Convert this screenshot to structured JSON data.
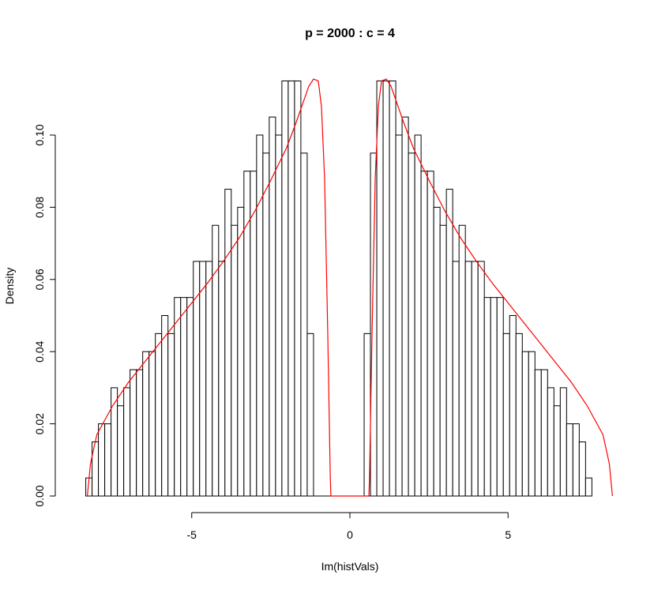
{
  "chart_data": {
    "type": "bar",
    "title": "p = 2000 : c = 4",
    "xlabel": "Im(histVals)",
    "ylabel": "Density",
    "xlim": [
      -8.4,
      8.4
    ],
    "ylim": [
      0,
      0.1175
    ],
    "x_ticks": [
      -5,
      0,
      5
    ],
    "x_tick_labels": [
      "-5",
      "0",
      "5"
    ],
    "y_ticks": [
      0,
      0.02,
      0.04,
      0.06,
      0.08,
      0.1
    ],
    "y_tick_labels": [
      "0.00",
      "0.02",
      "0.04",
      "0.06",
      "0.08",
      "0.10"
    ],
    "grid": false,
    "bin_start": -8.35,
    "bin_width": 0.2,
    "histogram_density": [
      0.005,
      0.015,
      0.02,
      0.02,
      0.03,
      0.025,
      0.03,
      0.035,
      0.035,
      0.04,
      0.04,
      0.045,
      0.05,
      0.045,
      0.055,
      0.055,
      0.055,
      0.065,
      0.065,
      0.065,
      0.075,
      0.065,
      0.085,
      0.075,
      0.08,
      0.09,
      0.09,
      0.1,
      0.095,
      0.105,
      0.1,
      0.115,
      0.115,
      0.115,
      0.095,
      0.045,
      0,
      0,
      0,
      0,
      0,
      0,
      0,
      0,
      0.045,
      0.095,
      0.115,
      0.115,
      0.115,
      0.1,
      0.105,
      0.095,
      0.1,
      0.09,
      0.09,
      0.08,
      0.075,
      0.085,
      0.065,
      0.075,
      0.065,
      0.065,
      0.065,
      0.055,
      0.055,
      0.055,
      0.045,
      0.05,
      0.045,
      0.04,
      0.04,
      0.035,
      0.035,
      0.03,
      0.025,
      0.03,
      0.02,
      0.02,
      0.015,
      0.005
    ],
    "density_curve": {
      "color": "#ff0000",
      "x": [
        -8.3,
        -8.2,
        -8.0,
        -7.5,
        -7.0,
        -6.5,
        -6.0,
        -5.5,
        -5.0,
        -4.5,
        -4.0,
        -3.5,
        -3.0,
        -2.5,
        -2.0,
        -1.7,
        -1.5,
        -1.3,
        -1.15,
        -1.0,
        -0.9,
        -0.8,
        -0.7,
        -0.62,
        -0.6,
        0.6,
        0.62,
        0.7,
        0.8,
        0.9,
        1.0,
        1.15,
        1.3,
        1.5,
        1.7,
        2.0,
        2.5,
        3.0,
        3.5,
        4.0,
        4.5,
        5.0,
        5.5,
        6.0,
        6.5,
        7.0,
        7.5,
        8.0,
        8.2,
        8.3
      ],
      "y": [
        0.0,
        0.009,
        0.017,
        0.025,
        0.0315,
        0.037,
        0.0425,
        0.048,
        0.0535,
        0.059,
        0.065,
        0.0715,
        0.079,
        0.0875,
        0.0965,
        0.1035,
        0.1085,
        0.1135,
        0.1155,
        0.115,
        0.108,
        0.088,
        0.045,
        0.005,
        0.0,
        0.0,
        0.005,
        0.045,
        0.088,
        0.108,
        0.115,
        0.1155,
        0.1135,
        0.1085,
        0.1035,
        0.0965,
        0.0875,
        0.079,
        0.0715,
        0.065,
        0.059,
        0.0535,
        0.048,
        0.0425,
        0.037,
        0.0315,
        0.025,
        0.017,
        0.009,
        0.0
      ]
    }
  }
}
